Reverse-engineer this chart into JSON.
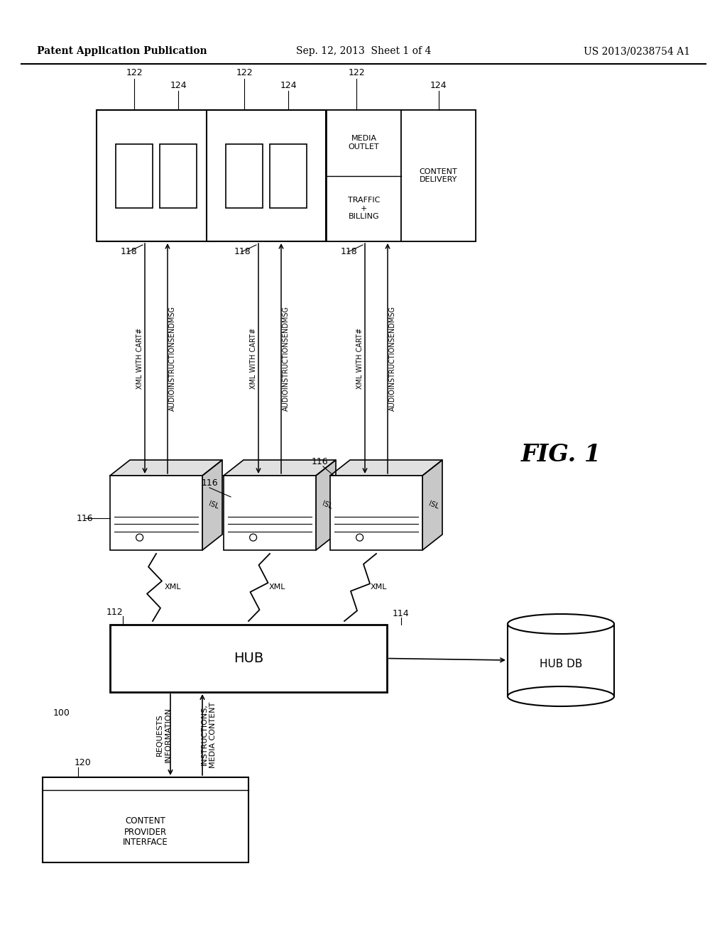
{
  "bg_color": "#ffffff",
  "header_left": "Patent Application Publication",
  "header_mid": "Sep. 12, 2013  Sheet 1 of 4",
  "header_right": "US 2013/0238754 A1",
  "fig_label": "FIG. 1",
  "system_label": "100",
  "hub_label": "112",
  "hub_db_label": "114",
  "hub_text": "HUB",
  "hub_db_text": "HUB DB",
  "content_provider_label": "120",
  "content_provider_text": "CONTENT\nPROVIDER\nINTERFACE",
  "requests_text": "REQUESTS\nINFORMATION",
  "instructions_text": "INSTRUCTIONS,\nMEDIA CONTENT",
  "isl_text": "ISL",
  "xml_text": "XML",
  "xml_cart_text": "XML WITH CART#",
  "audio_text": "AUDIOINSTRUCTIONSENDMSG",
  "outlet3_left_top": "MEDIA\nOUTLET",
  "outlet3_left_bot": "TRAFFIC\n+\nBILLING",
  "outlet3_right": "CONTENT\nDELIVERY"
}
